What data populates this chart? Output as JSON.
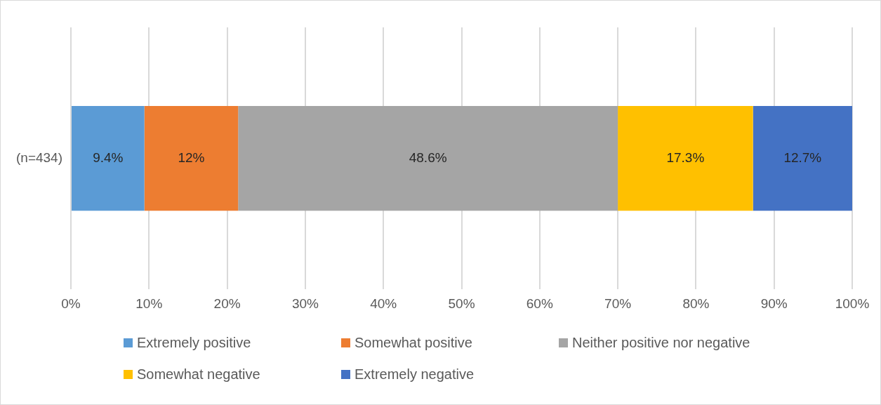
{
  "chart_data": {
    "type": "bar",
    "orientation": "horizontal",
    "stacked": true,
    "categories": [
      "(n=434)"
    ],
    "series": [
      {
        "name": "Extremely positive",
        "color": "#5b9bd5",
        "values": [
          9.4
        ],
        "value_labels": [
          "9.4%"
        ]
      },
      {
        "name": "Somewhat positive",
        "color": "#ed7d31",
        "values": [
          12
        ],
        "value_labels": [
          "12%"
        ]
      },
      {
        "name": "Neither positive nor negative",
        "color": "#a5a5a5",
        "values": [
          48.6
        ],
        "value_labels": [
          "48.6%"
        ]
      },
      {
        "name": "Somewhat negative",
        "color": "#ffc000",
        "values": [
          17.3
        ],
        "value_labels": [
          "17.3%"
        ]
      },
      {
        "name": "Extremely negative",
        "color": "#4472c4",
        "values": [
          12.7
        ],
        "value_labels": [
          "12.7%"
        ]
      }
    ],
    "xlim": [
      0,
      100
    ],
    "xticks": [
      {
        "value": 0,
        "label": "0%"
      },
      {
        "value": 10,
        "label": "10%"
      },
      {
        "value": 20,
        "label": "20%"
      },
      {
        "value": 30,
        "label": "30%"
      },
      {
        "value": 40,
        "label": "40%"
      },
      {
        "value": 50,
        "label": "50%"
      },
      {
        "value": 60,
        "label": "60%"
      },
      {
        "value": 70,
        "label": "70%"
      },
      {
        "value": 80,
        "label": "80%"
      },
      {
        "value": 90,
        "label": "90%"
      },
      {
        "value": 100,
        "label": "100%"
      }
    ],
    "grid": "x",
    "legend": "bottom"
  }
}
